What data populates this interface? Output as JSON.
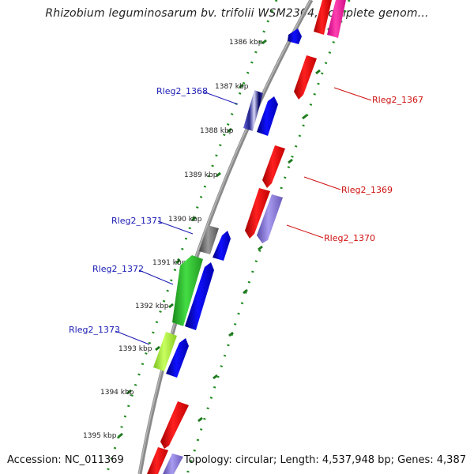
{
  "title": "Rhizobium leguminosarum bv. trifolii WSM2304, complete genom...",
  "footer": {
    "accession": "Accession: NC_011369",
    "topology": "Topology: circular; Length: 4,537,948 bp; Genes: 4,387"
  },
  "kbp_ticks": [
    "1386 kbp",
    "1387 kbp",
    "1388 kbp",
    "1389 kbp",
    "1390 kbp",
    "1391 kbp",
    "1392 kbp",
    "1393 kbp",
    "1394 kbp",
    "1395 kbp"
  ],
  "gene_labels": {
    "rleg2_1368": "Rleg2_1368",
    "rleg2_1371": "Rleg2_1371",
    "rleg2_1372": "Rleg2_1372",
    "rleg2_1373": "Rleg2_1373",
    "rleg2_1367": "Rleg2_1367",
    "rleg2_1369": "Rleg2_1369",
    "rleg2_1370": "Rleg2_1370"
  },
  "colors": {
    "forward_label": "#1a1ab4",
    "reverse_label": "#d01010",
    "backbone": "#8a8a8a",
    "dotted_track": "#1e8a1e"
  }
}
